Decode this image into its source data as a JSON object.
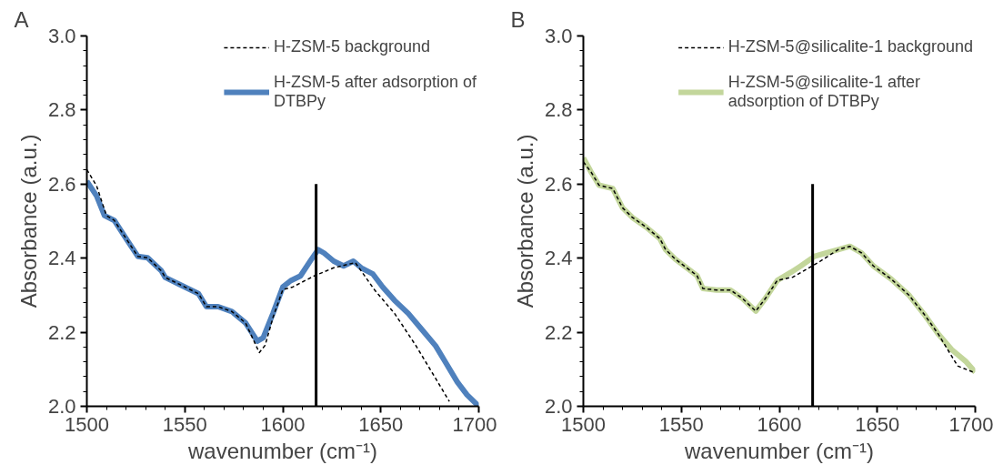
{
  "chart_data": [
    {
      "type": "line",
      "title": "A",
      "xlabel": "wavenumber (cm⁻¹)",
      "ylabel": "Absorbance (a.u.)",
      "xlim": [
        1500,
        1700
      ],
      "xticks": [
        1500,
        1550,
        1600,
        1650,
        1700
      ],
      "ylim": [
        2.0,
        3.0
      ],
      "yticks": [
        {
          "value": 2.0,
          "label": "2.0"
        },
        {
          "value": 2.2,
          "label": "2.2"
        },
        {
          "value": 2.4,
          "label": "2.4"
        },
        {
          "value": 2.6,
          "label": "2.6"
        },
        {
          "value": 2.8,
          "label": "2.8"
        },
        {
          "value": 3.0,
          "label": "3.0"
        }
      ],
      "grid": false,
      "legend": "top right",
      "marker": "none",
      "series": [
        {
          "name": "H-ZSM-5 background",
          "color": "#000000",
          "line_style": "dashed",
          "x": [
            1500,
            1505,
            1510,
            1514,
            1521,
            1526,
            1531,
            1538,
            1540,
            1547,
            1557,
            1561,
            1567,
            1574,
            1581,
            1588,
            1591,
            1595,
            1600,
            1605,
            1616,
            1626,
            1637,
            1647,
            1657,
            1668,
            1678,
            1685
          ],
          "values": [
            2.639,
            2.595,
            2.515,
            2.502,
            2.445,
            2.405,
            2.401,
            2.366,
            2.348,
            2.33,
            2.304,
            2.269,
            2.269,
            2.256,
            2.225,
            2.145,
            2.165,
            2.24,
            2.315,
            2.322,
            2.352,
            2.374,
            2.388,
            2.313,
            2.251,
            2.163,
            2.075,
            2.013
          ]
        },
        {
          "name": "H-ZSM-5 after adsorption of DTBPy",
          "color": "#4f81bd",
          "line_style": "solid",
          "x": [
            1500,
            1505,
            1509,
            1514,
            1521,
            1526,
            1531,
            1538,
            1540,
            1547,
            1557,
            1561,
            1567,
            1574,
            1581,
            1587,
            1590,
            1595,
            1600,
            1604,
            1609,
            1614,
            1618,
            1621,
            1626,
            1631,
            1636,
            1640,
            1646,
            1651,
            1657,
            1664,
            1671,
            1678,
            1683,
            1689,
            1694,
            1700
          ],
          "values": [
            2.608,
            2.568,
            2.515,
            2.502,
            2.445,
            2.405,
            2.401,
            2.366,
            2.348,
            2.33,
            2.304,
            2.269,
            2.269,
            2.256,
            2.225,
            2.176,
            2.185,
            2.251,
            2.322,
            2.339,
            2.352,
            2.392,
            2.423,
            2.414,
            2.392,
            2.379,
            2.392,
            2.374,
            2.357,
            2.322,
            2.286,
            2.251,
            2.207,
            2.163,
            2.119,
            2.066,
            2.031,
            2.0
          ]
        },
        {
          "color": "#000000",
          "line_style": "solid",
          "x": [
            1617,
            1617
          ],
          "values": [
            2.0,
            2.6
          ]
        }
      ]
    },
    {
      "type": "line",
      "title": "B",
      "xlabel": "wavenumber (cm⁻¹)",
      "ylabel": "Absorbance (a.u.)",
      "xlim": [
        1500,
        1700
      ],
      "xticks": [
        1500,
        1550,
        1600,
        1650,
        1700
      ],
      "ylim": [
        2.0,
        3.0
      ],
      "yticks": [
        {
          "value": 2.0,
          "label": "2.0"
        },
        {
          "value": 2.2,
          "label": "2.2"
        },
        {
          "value": 2.4,
          "label": "2.4"
        },
        {
          "value": 2.6,
          "label": "2.6"
        },
        {
          "value": 2.8,
          "label": "2.8"
        },
        {
          "value": 3.0,
          "label": "3.0"
        }
      ],
      "grid": false,
      "legend": "top right",
      "marker": "none",
      "series": [
        {
          "name": "H-ZSM-5@silicalite-1 background",
          "color": "#000000",
          "line_style": "dashed",
          "x": [
            1500,
            1504,
            1508,
            1515,
            1520,
            1525,
            1532,
            1539,
            1542,
            1547,
            1558,
            1561,
            1568,
            1575,
            1581,
            1588,
            1593,
            1599,
            1607,
            1621,
            1630,
            1636,
            1642,
            1648,
            1657,
            1666,
            1674,
            1681,
            1691,
            1700
          ],
          "values": [
            2.66,
            2.632,
            2.597,
            2.588,
            2.536,
            2.51,
            2.484,
            2.453,
            2.423,
            2.397,
            2.353,
            2.318,
            2.314,
            2.314,
            2.292,
            2.257,
            2.292,
            2.34,
            2.349,
            2.392,
            2.423,
            2.432,
            2.414,
            2.379,
            2.344,
            2.301,
            2.248,
            2.196,
            2.109,
            2.09
          ]
        },
        {
          "name": "H-ZSM-5@silicalite-1 after adsorption of DTBPy",
          "color": "#c3d69b",
          "line_style": "solid",
          "x": [
            1500,
            1504,
            1508,
            1515,
            1520,
            1525,
            1532,
            1539,
            1542,
            1547,
            1558,
            1561,
            1568,
            1575,
            1581,
            1588,
            1593,
            1599,
            1606,
            1611,
            1618,
            1624,
            1630,
            1636,
            1642,
            1648,
            1657,
            1666,
            1674,
            1681,
            1688,
            1695,
            1700
          ],
          "values": [
            2.671,
            2.632,
            2.597,
            2.588,
            2.536,
            2.51,
            2.484,
            2.453,
            2.423,
            2.397,
            2.353,
            2.318,
            2.314,
            2.314,
            2.292,
            2.257,
            2.292,
            2.34,
            2.362,
            2.379,
            2.405,
            2.414,
            2.423,
            2.432,
            2.414,
            2.379,
            2.344,
            2.301,
            2.248,
            2.196,
            2.153,
            2.122,
            2.092
          ]
        },
        {
          "color": "#000000",
          "line_style": "solid",
          "x": [
            1617,
            1617
          ],
          "values": [
            2.0,
            2.6
          ]
        }
      ]
    }
  ]
}
